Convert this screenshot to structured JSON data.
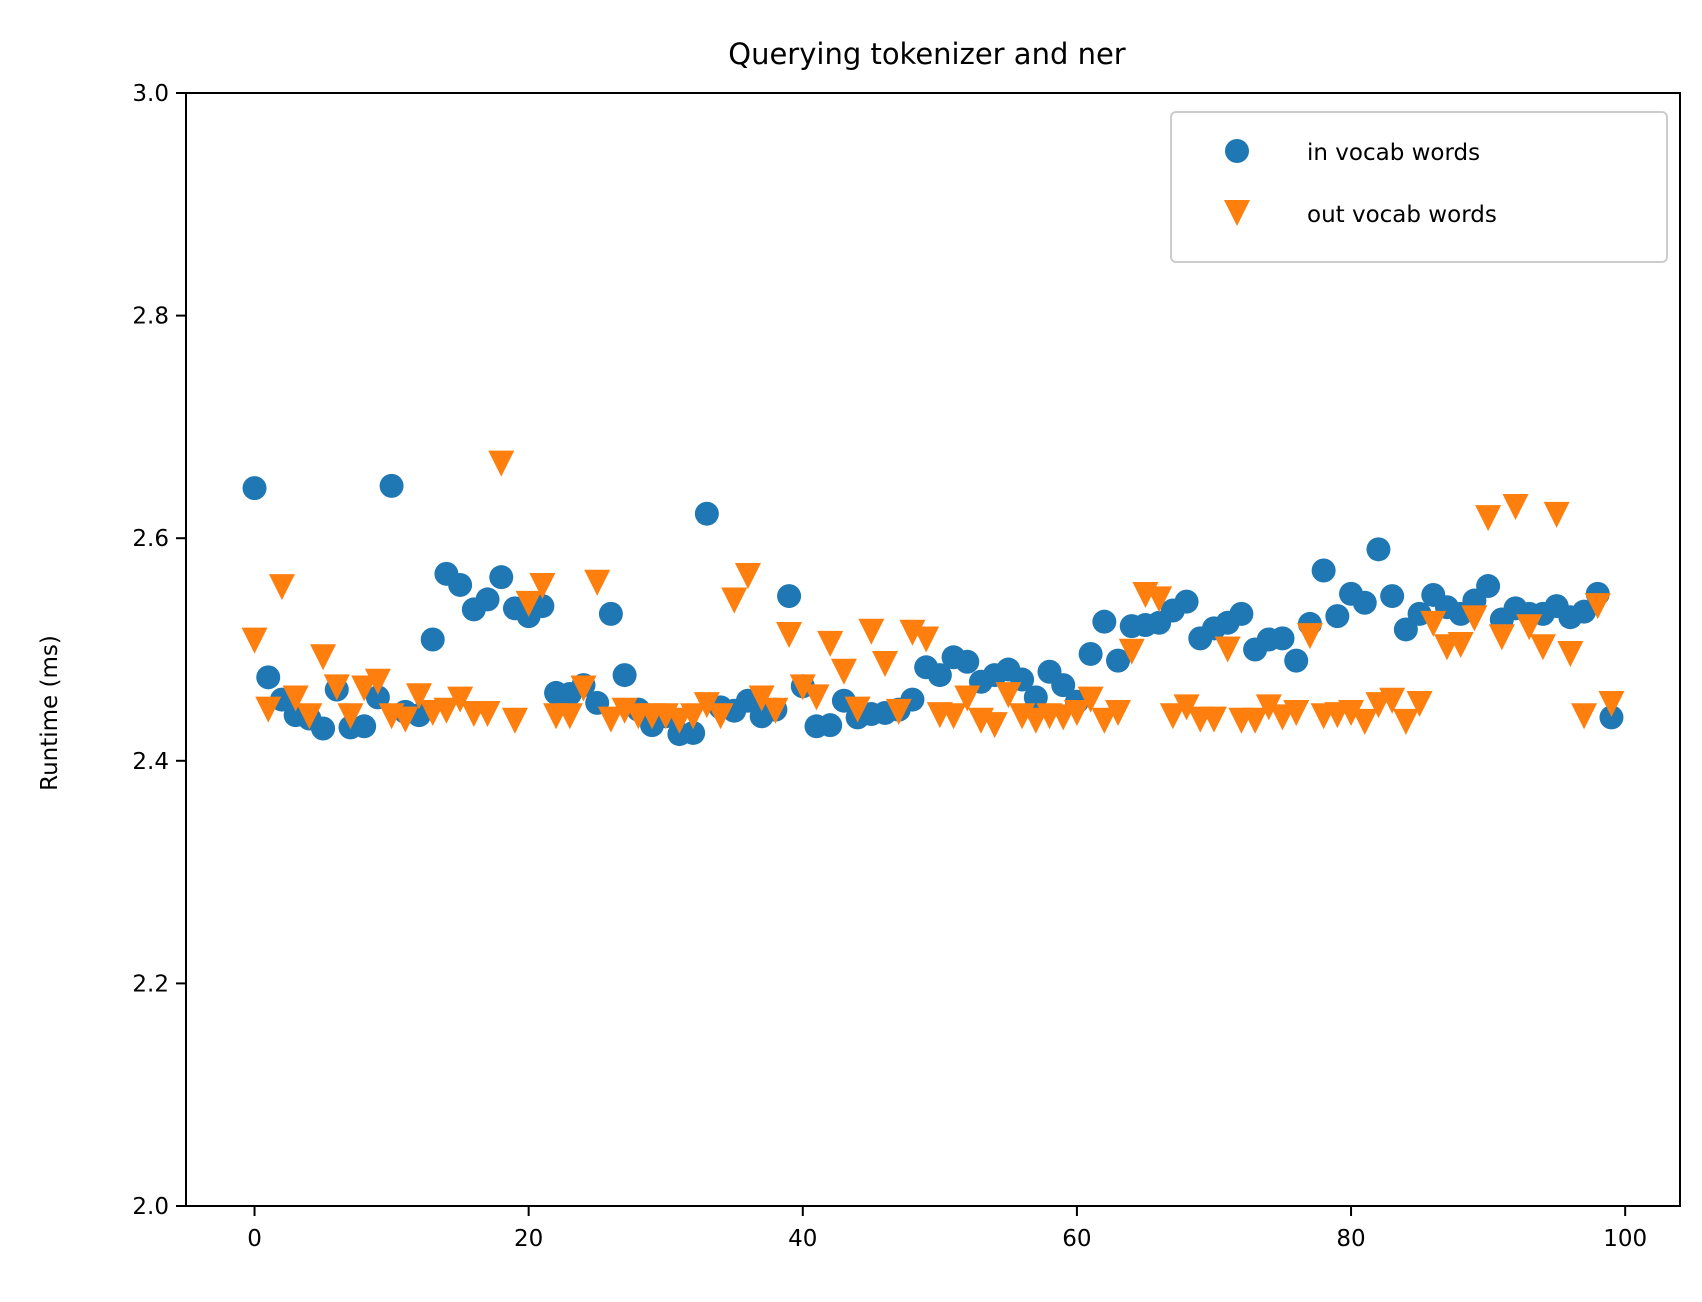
{
  "chart_data": {
    "type": "scatter",
    "title": "Querying tokenizer and ner",
    "xlabel": "",
    "ylabel": "Runtime (ms)",
    "xlim": [
      -5,
      104
    ],
    "ylim": [
      2.0,
      3.0
    ],
    "x_ticks": [
      0,
      20,
      40,
      60,
      80,
      100
    ],
    "y_ticks": [
      2.0,
      2.2,
      2.4,
      2.6,
      2.8,
      3.0
    ],
    "x_tick_labels": [
      "0",
      "20",
      "40",
      "60",
      "80",
      "100"
    ],
    "y_tick_labels": [
      "2.0",
      "2.2",
      "2.4",
      "2.6",
      "2.8",
      "3.0"
    ],
    "grid": false,
    "legend_position": "top-right",
    "series": [
      {
        "name": "in vocab words",
        "marker": "circle",
        "color": "#1f77b4",
        "x": [
          0,
          1,
          2,
          3,
          4,
          5,
          6,
          7,
          8,
          9,
          10,
          11,
          12,
          13,
          14,
          15,
          16,
          17,
          18,
          19,
          20,
          21,
          22,
          23,
          24,
          25,
          26,
          27,
          28,
          29,
          30,
          31,
          32,
          33,
          34,
          35,
          36,
          37,
          38,
          39,
          40,
          41,
          42,
          43,
          44,
          45,
          46,
          47,
          48,
          49,
          50,
          51,
          52,
          53,
          54,
          55,
          56,
          57,
          58,
          59,
          60,
          61,
          62,
          63,
          64,
          65,
          66,
          67,
          68,
          69,
          70,
          71,
          72,
          73,
          74,
          75,
          76,
          77,
          78,
          79,
          80,
          81,
          82,
          83,
          84,
          85,
          86,
          87,
          88,
          89,
          90,
          91,
          92,
          93,
          94,
          95,
          96,
          97,
          98,
          99
        ],
        "y": [
          2.645,
          2.475,
          2.455,
          2.441,
          2.438,
          2.429,
          2.464,
          2.43,
          2.431,
          2.457,
          2.647,
          2.444,
          2.441,
          2.509,
          2.568,
          2.558,
          2.536,
          2.545,
          2.565,
          2.537,
          2.53,
          2.539,
          2.461,
          2.46,
          2.468,
          2.452,
          2.532,
          2.477,
          2.446,
          2.432,
          2.44,
          2.424,
          2.425,
          2.622,
          2.448,
          2.445,
          2.454,
          2.44,
          2.446,
          2.548,
          2.467,
          2.431,
          2.432,
          2.454,
          2.439,
          2.442,
          2.443,
          2.446,
          2.455,
          2.484,
          2.477,
          2.493,
          2.489,
          2.471,
          2.477,
          2.482,
          2.473,
          2.457,
          2.48,
          2.468,
          2.453,
          2.496,
          2.525,
          2.49,
          2.521,
          2.522,
          2.524,
          2.535,
          2.543,
          2.51,
          2.519,
          2.524,
          2.532,
          2.5,
          2.509,
          2.51,
          2.49,
          2.523,
          2.571,
          2.53,
          2.55,
          2.542,
          2.59,
          2.548,
          2.518,
          2.532,
          2.549,
          2.538,
          2.532,
          2.544,
          2.557,
          2.527,
          2.537,
          2.532,
          2.532,
          2.539,
          2.529,
          2.534,
          2.55,
          2.439
        ]
      },
      {
        "name": "out vocab words",
        "marker": "triangle-down",
        "color": "#ff7f0e",
        "x": [
          0,
          1,
          2,
          3,
          4,
          5,
          6,
          7,
          8,
          9,
          10,
          11,
          12,
          13,
          14,
          15,
          16,
          17,
          18,
          19,
          20,
          21,
          22,
          23,
          24,
          25,
          26,
          27,
          28,
          29,
          30,
          31,
          32,
          33,
          34,
          35,
          36,
          37,
          38,
          39,
          40,
          41,
          42,
          43,
          44,
          45,
          46,
          47,
          48,
          49,
          50,
          51,
          52,
          53,
          54,
          55,
          56,
          57,
          58,
          59,
          60,
          61,
          62,
          63,
          64,
          65,
          66,
          67,
          68,
          69,
          70,
          71,
          72,
          73,
          74,
          75,
          76,
          77,
          78,
          79,
          80,
          81,
          82,
          83,
          84,
          85,
          86,
          87,
          88,
          89,
          90,
          91,
          92,
          93,
          94,
          95,
          96,
          97,
          98,
          99
        ],
        "y": [
          2.508,
          2.446,
          2.556,
          2.456,
          2.44,
          2.493,
          2.466,
          2.44,
          2.465,
          2.471,
          2.44,
          2.437,
          2.458,
          2.443,
          2.445,
          2.455,
          2.442,
          2.442,
          2.667,
          2.436,
          2.541,
          2.557,
          2.44,
          2.44,
          2.465,
          2.56,
          2.437,
          2.445,
          2.44,
          2.44,
          2.44,
          2.436,
          2.44,
          2.45,
          2.44,
          2.544,
          2.566,
          2.456,
          2.445,
          2.513,
          2.466,
          2.457,
          2.505,
          2.48,
          2.446,
          2.516,
          2.487,
          2.444,
          2.515,
          2.509,
          2.441,
          2.44,
          2.456,
          2.436,
          2.432,
          2.459,
          2.44,
          2.436,
          2.44,
          2.439,
          2.443,
          2.455,
          2.436,
          2.443,
          2.498,
          2.549,
          2.545,
          2.44,
          2.448,
          2.437,
          2.437,
          2.5,
          2.436,
          2.436,
          2.448,
          2.439,
          2.443,
          2.512,
          2.44,
          2.441,
          2.443,
          2.435,
          2.45,
          2.454,
          2.435,
          2.451,
          2.523,
          2.502,
          2.504,
          2.528,
          2.618,
          2.511,
          2.628,
          2.52,
          2.502,
          2.621,
          2.496,
          2.44,
          2.539,
          2.451
        ]
      }
    ]
  }
}
